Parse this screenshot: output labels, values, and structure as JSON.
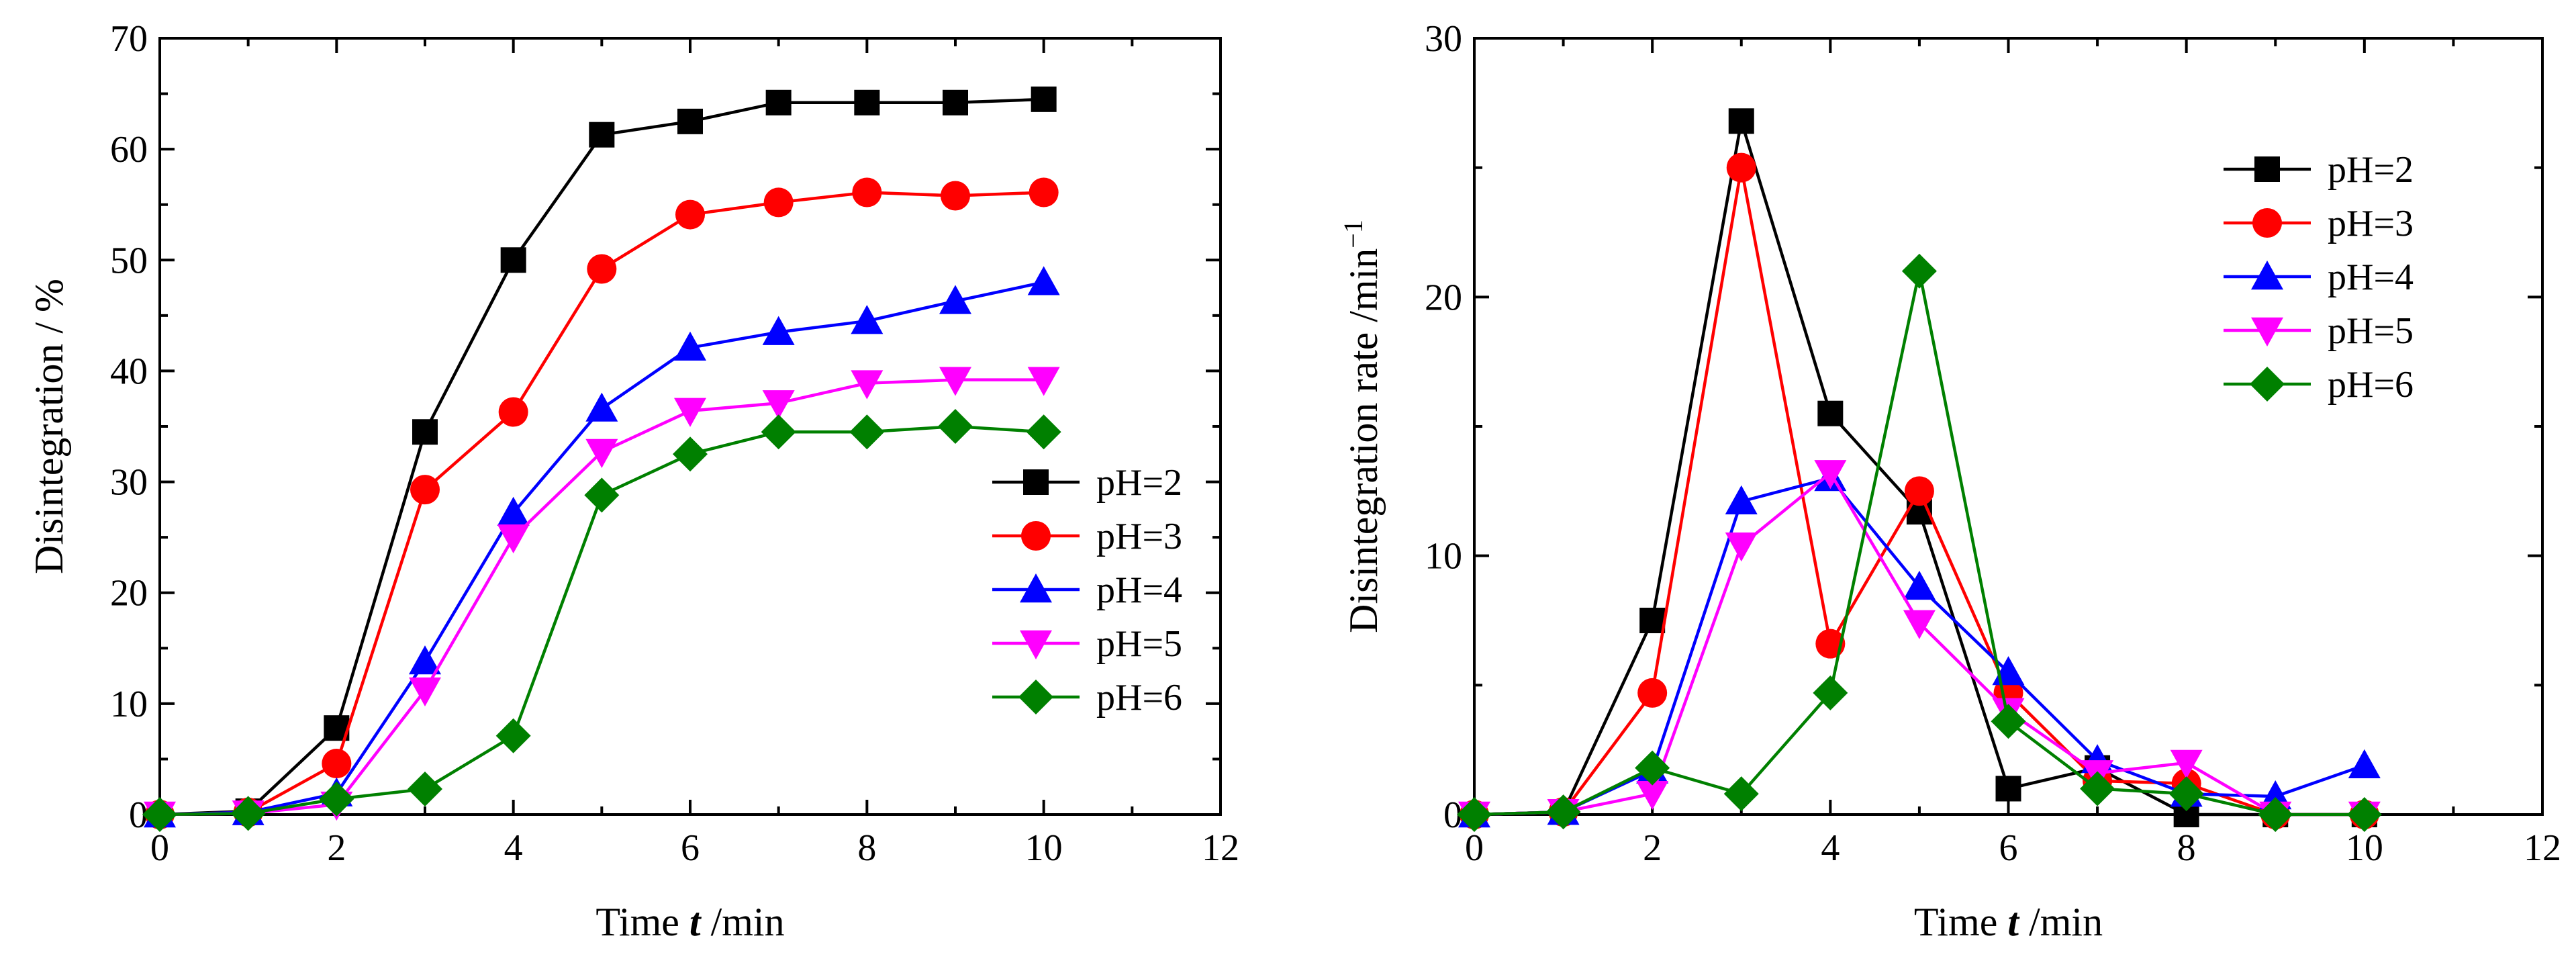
{
  "figure": {
    "charts": [
      {
        "id": "left"
      },
      {
        "id": "right"
      }
    ]
  },
  "chart_data": [
    {
      "type": "line",
      "title": "",
      "xlabel_prefix": "Time ",
      "xlabel_italic": "t",
      "xlabel_suffix": " /min",
      "ylabel": "Disintegration / %",
      "xlim": [
        0,
        12
      ],
      "ylim": [
        0,
        70
      ],
      "xticks": [
        0,
        2,
        4,
        6,
        8,
        10,
        12
      ],
      "yticks": [
        0,
        10,
        20,
        30,
        40,
        50,
        60,
        70
      ],
      "legend_position": "bottom-right",
      "x": [
        0,
        1,
        2,
        3,
        4,
        5,
        6,
        7,
        8,
        9,
        10
      ],
      "series": [
        {
          "name": "pH=2",
          "color": "#000000",
          "marker": "square",
          "values": [
            0,
            0.3,
            7.8,
            34.5,
            50,
            61.3,
            62.5,
            64.2,
            64.2,
            64.2,
            64.5
          ]
        },
        {
          "name": "pH=3",
          "color": "#ff0000",
          "marker": "circle",
          "values": [
            0,
            0.2,
            4.6,
            29.3,
            36.3,
            49.2,
            54.1,
            55.2,
            56.1,
            55.8,
            56.1
          ]
        },
        {
          "name": "pH=4",
          "color": "#0000ff",
          "marker": "triangle-up",
          "values": [
            0,
            0.2,
            1.9,
            13.8,
            27.2,
            36.6,
            42.1,
            43.5,
            44.5,
            46.3,
            48
          ]
        },
        {
          "name": "pH=5",
          "color": "#ff00ff",
          "marker": "triangle-down",
          "values": [
            0,
            0.1,
            0.9,
            11.2,
            25,
            32.7,
            36.4,
            37.1,
            38.9,
            39.2,
            39.2
          ]
        },
        {
          "name": "pH=6",
          "color": "#008000",
          "marker": "diamond",
          "values": [
            0,
            0.1,
            1.4,
            2.3,
            7.1,
            28.8,
            32.5,
            34.5,
            34.5,
            35,
            34.5
          ]
        }
      ]
    },
    {
      "type": "line",
      "title": "",
      "xlabel_prefix": "Time ",
      "xlabel_italic": "t",
      "xlabel_suffix": " /min",
      "ylabel": "Disintegration rate /min",
      "ylabel_superscript": "−1",
      "xlim": [
        0,
        12
      ],
      "ylim": [
        0,
        30
      ],
      "xticks": [
        0,
        2,
        4,
        6,
        8,
        10,
        12
      ],
      "yticks": [
        0,
        10,
        20,
        30
      ],
      "legend_position": "top-right",
      "x": [
        0,
        1,
        2,
        3,
        4,
        5,
        6,
        7,
        8,
        9,
        10
      ],
      "series": [
        {
          "name": "pH=2",
          "color": "#000000",
          "marker": "square",
          "values": [
            0,
            0.1,
            7.5,
            26.8,
            15.5,
            11.7,
            1,
            1.8,
            0,
            0,
            0
          ]
        },
        {
          "name": "pH=3",
          "color": "#ff0000",
          "marker": "circle",
          "values": [
            0,
            0.1,
            4.7,
            25,
            6.6,
            12.5,
            4.7,
            1.3,
            1.2,
            0,
            0
          ]
        },
        {
          "name": "pH=4",
          "color": "#0000ff",
          "marker": "triangle-up",
          "values": [
            0,
            0.1,
            1.7,
            12.1,
            13,
            8.8,
            5.5,
            2.1,
            0.8,
            0.7,
            1.9
          ]
        },
        {
          "name": "pH=5",
          "color": "#ff00ff",
          "marker": "triangle-down",
          "values": [
            0,
            0.1,
            0.8,
            10.4,
            13.2,
            7.4,
            4,
            1.6,
            2,
            0,
            0
          ]
        },
        {
          "name": "pH=6",
          "color": "#008000",
          "marker": "diamond",
          "values": [
            0,
            0.1,
            1.8,
            0.8,
            4.7,
            21,
            3.6,
            1,
            0.8,
            0,
            0
          ]
        }
      ]
    }
  ]
}
